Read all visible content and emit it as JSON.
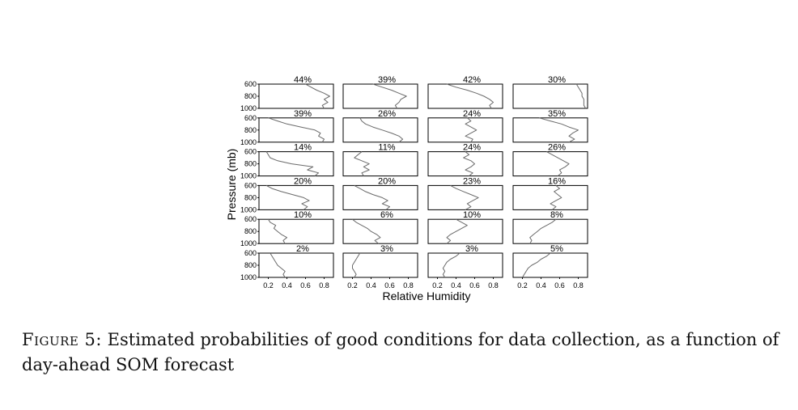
{
  "chart_data": {
    "type": "line",
    "xlabel": "Relative Humidity",
    "ylabel": "Pressure (mb)",
    "xlim": [
      0.1,
      0.9
    ],
    "xticks": [
      "0.2",
      "0.4",
      "0.6",
      "0.8"
    ],
    "ylim": [
      1000,
      600
    ],
    "yticks": [
      "600",
      "800",
      "1000"
    ],
    "grid": false,
    "rows": 6,
    "cols": 4,
    "panels": [
      {
        "label": "44%",
        "pressure": [
          600,
          650,
          700,
          750,
          800,
          850,
          900,
          950,
          1000
        ],
        "rh": [
          0.6,
          0.66,
          0.72,
          0.8,
          0.86,
          0.8,
          0.84,
          0.78,
          0.8
        ]
      },
      {
        "label": "39%",
        "pressure": [
          600,
          650,
          700,
          750,
          800,
          850,
          900,
          950,
          1000
        ],
        "rh": [
          0.42,
          0.52,
          0.62,
          0.7,
          0.78,
          0.72,
          0.7,
          0.66,
          0.68
        ]
      },
      {
        "label": "42%",
        "pressure": [
          600,
          650,
          700,
          750,
          800,
          850,
          900,
          950,
          1000
        ],
        "rh": [
          0.3,
          0.4,
          0.52,
          0.62,
          0.7,
          0.76,
          0.8,
          0.76,
          0.78
        ]
      },
      {
        "label": "30%",
        "pressure": [
          600,
          650,
          700,
          750,
          800,
          850,
          900,
          950,
          1000
        ],
        "rh": [
          0.78,
          0.8,
          0.82,
          0.84,
          0.84,
          0.86,
          0.86,
          0.86,
          0.88
        ]
      },
      {
        "label": "39%",
        "pressure": [
          600,
          650,
          700,
          750,
          800,
          850,
          900,
          950,
          1000
        ],
        "rh": [
          0.2,
          0.3,
          0.4,
          0.55,
          0.7,
          0.76,
          0.74,
          0.8,
          0.78
        ]
      },
      {
        "label": "26%",
        "pressure": [
          600,
          650,
          700,
          750,
          800,
          850,
          900,
          950,
          1000
        ],
        "rh": [
          0.28,
          0.3,
          0.34,
          0.42,
          0.52,
          0.62,
          0.7,
          0.74,
          0.7
        ]
      },
      {
        "label": "24%",
        "pressure": [
          600,
          650,
          700,
          750,
          800,
          850,
          900,
          950,
          1000
        ],
        "rh": [
          0.52,
          0.56,
          0.5,
          0.56,
          0.62,
          0.56,
          0.5,
          0.58,
          0.56
        ]
      },
      {
        "label": "35%",
        "pressure": [
          600,
          650,
          700,
          750,
          800,
          850,
          900,
          950,
          1000
        ],
        "rh": [
          0.38,
          0.5,
          0.62,
          0.7,
          0.8,
          0.74,
          0.7,
          0.76,
          0.7
        ]
      },
      {
        "label": "14%",
        "pressure": [
          600,
          650,
          700,
          750,
          800,
          850,
          900,
          950,
          1000
        ],
        "rh": [
          0.18,
          0.2,
          0.22,
          0.3,
          0.45,
          0.68,
          0.62,
          0.74,
          0.7
        ]
      },
      {
        "label": "11%",
        "pressure": [
          600,
          650,
          700,
          750,
          800,
          850,
          900,
          950,
          1000
        ],
        "rh": [
          0.3,
          0.26,
          0.22,
          0.3,
          0.38,
          0.32,
          0.38,
          0.3,
          0.32
        ]
      },
      {
        "label": "24%",
        "pressure": [
          600,
          650,
          700,
          750,
          800,
          850,
          900,
          950,
          1000
        ],
        "rh": [
          0.5,
          0.54,
          0.48,
          0.56,
          0.6,
          0.56,
          0.5,
          0.58,
          0.54
        ]
      },
      {
        "label": "26%",
        "pressure": [
          600,
          650,
          700,
          750,
          800,
          850,
          900,
          950,
          1000
        ],
        "rh": [
          0.46,
          0.52,
          0.58,
          0.64,
          0.7,
          0.66,
          0.6,
          0.62,
          0.58
        ]
      },
      {
        "label": "20%",
        "pressure": [
          600,
          650,
          700,
          750,
          800,
          850,
          900,
          950,
          1000
        ],
        "rh": [
          0.18,
          0.24,
          0.34,
          0.46,
          0.58,
          0.64,
          0.56,
          0.62,
          0.58
        ]
      },
      {
        "label": "20%",
        "pressure": [
          600,
          650,
          700,
          750,
          800,
          850,
          900,
          950,
          1000
        ],
        "rh": [
          0.22,
          0.28,
          0.34,
          0.42,
          0.52,
          0.58,
          0.52,
          0.6,
          0.56
        ]
      },
      {
        "label": "23%",
        "pressure": [
          600,
          650,
          700,
          750,
          800,
          850,
          900,
          950,
          1000
        ],
        "rh": [
          0.34,
          0.4,
          0.48,
          0.56,
          0.64,
          0.58,
          0.52,
          0.56,
          0.5
        ]
      },
      {
        "label": "16%",
        "pressure": [
          600,
          650,
          700,
          750,
          800,
          850,
          900,
          950,
          1000
        ],
        "rh": [
          0.56,
          0.6,
          0.54,
          0.58,
          0.62,
          0.56,
          0.5,
          0.56,
          0.52
        ]
      },
      {
        "label": "10%",
        "pressure": [
          600,
          650,
          700,
          750,
          800,
          850,
          900,
          950,
          1000
        ],
        "rh": [
          0.2,
          0.22,
          0.28,
          0.26,
          0.3,
          0.34,
          0.4,
          0.36,
          0.38
        ]
      },
      {
        "label": "6%",
        "pressure": [
          600,
          650,
          700,
          750,
          800,
          850,
          900,
          950,
          1000
        ],
        "rh": [
          0.2,
          0.24,
          0.3,
          0.36,
          0.4,
          0.46,
          0.5,
          0.44,
          0.48
        ]
      },
      {
        "label": "10%",
        "pressure": [
          600,
          650,
          700,
          750,
          800,
          850,
          900,
          950,
          1000
        ],
        "rh": [
          0.4,
          0.46,
          0.52,
          0.46,
          0.4,
          0.34,
          0.3,
          0.34,
          0.3
        ]
      },
      {
        "label": "8%",
        "pressure": [
          600,
          650,
          700,
          750,
          800,
          850,
          900,
          950,
          1000
        ],
        "rh": [
          0.56,
          0.52,
          0.46,
          0.4,
          0.36,
          0.32,
          0.28,
          0.3,
          0.28
        ]
      },
      {
        "label": "2%",
        "pressure": [
          600,
          650,
          700,
          750,
          800,
          850,
          900,
          950,
          1000
        ],
        "rh": [
          0.22,
          0.24,
          0.26,
          0.28,
          0.3,
          0.34,
          0.38,
          0.36,
          0.38
        ]
      },
      {
        "label": "3%",
        "pressure": [
          600,
          650,
          700,
          750,
          800,
          850,
          900,
          950,
          1000
        ],
        "rh": [
          0.28,
          0.26,
          0.24,
          0.22,
          0.2,
          0.2,
          0.22,
          0.24,
          0.22
        ]
      },
      {
        "label": "3%",
        "pressure": [
          600,
          650,
          700,
          750,
          800,
          850,
          900,
          950,
          1000
        ],
        "rh": [
          0.44,
          0.4,
          0.34,
          0.3,
          0.28,
          0.26,
          0.28,
          0.26,
          0.28
        ]
      },
      {
        "label": "5%",
        "pressure": [
          600,
          650,
          700,
          750,
          800,
          850,
          900,
          950,
          1000
        ],
        "rh": [
          0.5,
          0.46,
          0.4,
          0.36,
          0.3,
          0.26,
          0.24,
          0.22,
          0.2
        ]
      }
    ]
  },
  "caption": {
    "label": "Figure 5:",
    "text": "Estimated probabilities of good conditions for data collection, as a function of day-ahead SOM forecast"
  }
}
